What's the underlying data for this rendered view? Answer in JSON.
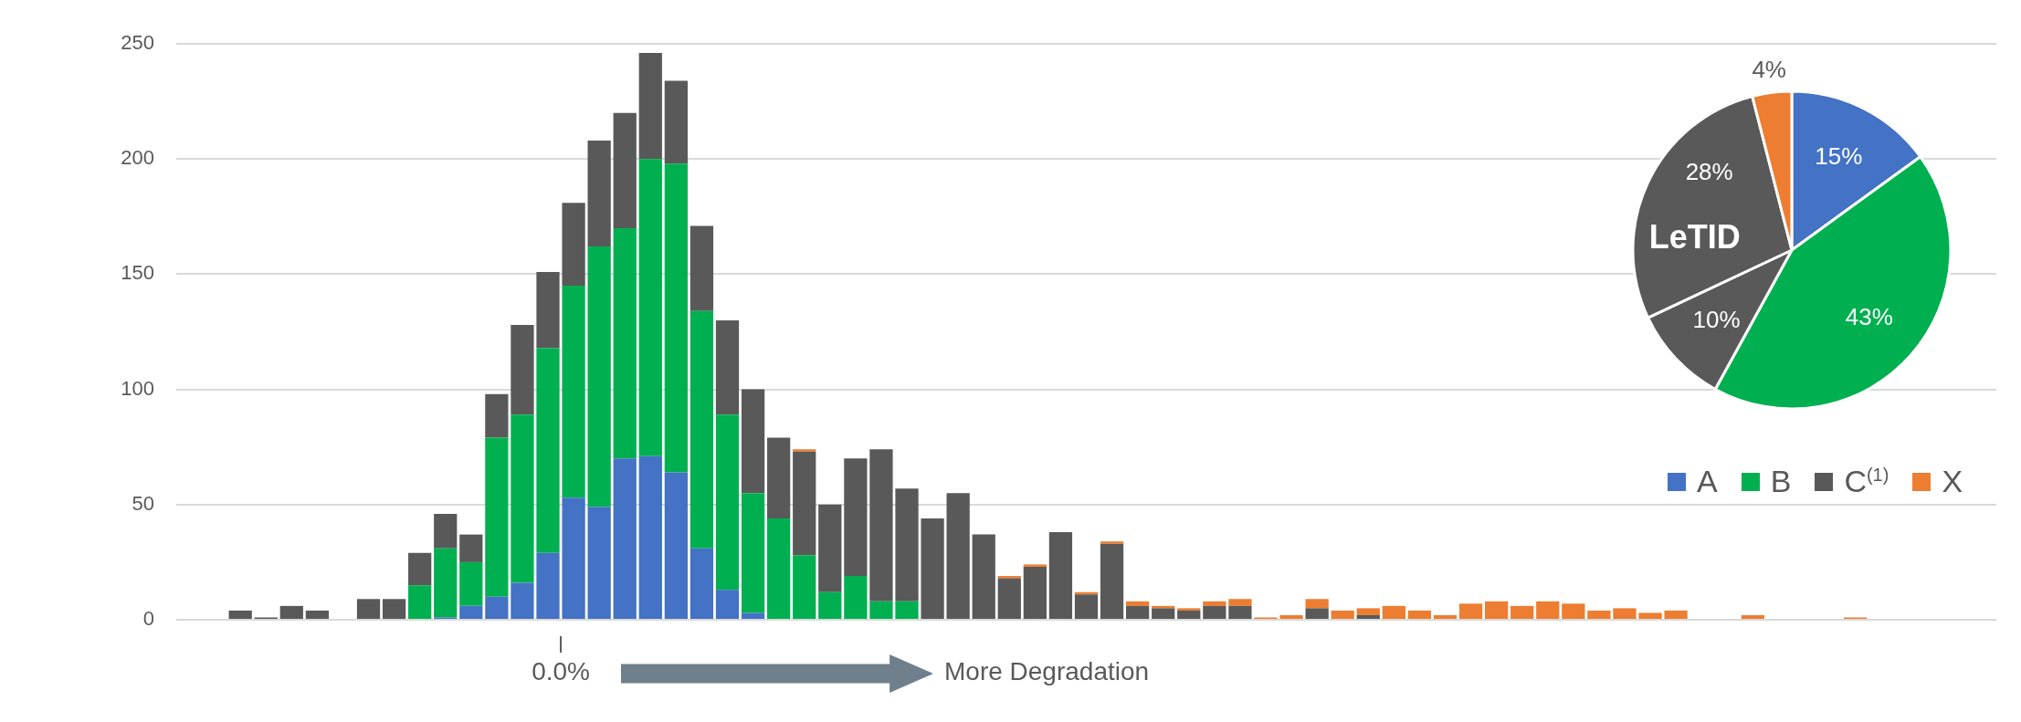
{
  "chart_data": [
    {
      "type": "bar",
      "stacked": true,
      "categories": [
        null,
        null,
        null,
        null,
        null,
        null,
        null,
        null,
        null,
        null,
        null,
        null,
        null,
        null,
        null,
        null,
        null,
        null,
        null,
        null,
        null,
        null,
        null,
        null,
        null,
        null,
        null,
        null,
        null,
        null,
        null,
        null,
        null,
        null,
        null,
        null,
        null,
        null,
        null,
        null,
        null,
        null,
        null,
        null,
        null,
        null,
        null,
        null,
        null,
        null,
        null,
        null,
        null,
        null,
        null,
        null,
        null,
        null,
        null,
        null,
        null,
        null,
        null,
        null,
        null,
        null,
        null,
        null,
        null,
        null,
        null
      ],
      "series": [
        {
          "name": "A",
          "color": "#4472c4",
          "values": [
            0,
            0,
            0,
            0,
            0,
            0,
            0,
            0,
            0,
            0,
            1,
            6,
            10,
            16,
            29,
            53,
            49,
            70,
            71,
            64,
            31,
            13,
            3,
            0,
            0,
            0,
            0,
            0,
            0,
            0,
            0,
            0,
            0,
            0,
            0,
            0,
            0,
            0,
            0,
            0,
            0,
            0,
            0,
            0,
            0,
            0,
            0,
            0,
            0,
            0,
            0,
            0,
            0,
            0,
            0,
            0,
            0,
            0,
            0,
            0,
            0,
            0,
            0,
            0,
            0,
            0,
            0,
            0,
            0,
            0,
            0
          ]
        },
        {
          "name": "B",
          "color": "#00b050",
          "values": [
            0,
            0,
            0,
            0,
            0,
            0,
            0,
            0,
            0,
            15,
            30,
            19,
            69,
            73,
            89,
            92,
            113,
            100,
            129,
            134,
            103,
            76,
            52,
            44,
            28,
            12,
            19,
            8,
            8,
            0,
            0,
            0,
            0,
            0,
            0,
            0,
            0,
            0,
            0,
            0,
            0,
            0,
            0,
            0,
            0,
            0,
            0,
            0,
            0,
            0,
            0,
            0,
            0,
            0,
            0,
            0,
            0,
            0,
            0,
            0,
            0,
            0,
            0,
            0,
            0,
            0,
            0,
            0,
            0,
            0,
            0
          ]
        },
        {
          "name": "C$^{(1)}$",
          "color": "#595959",
          "values": [
            0,
            0,
            4,
            1,
            6,
            4,
            0,
            9,
            9,
            14,
            15,
            12,
            19,
            39,
            33,
            36,
            46,
            50,
            46,
            36,
            37,
            41,
            45,
            35,
            45,
            38,
            51,
            66,
            49,
            44,
            55,
            37,
            18,
            23,
            38,
            11,
            33,
            6,
            5,
            4,
            6,
            6,
            0,
            0,
            5,
            0,
            2,
            0,
            0,
            0,
            0,
            0,
            0,
            0,
            0,
            0,
            0,
            0,
            0,
            0,
            0,
            0,
            0,
            0,
            0,
            0,
            0,
            0,
            0,
            0,
            0
          ]
        },
        {
          "name": "X",
          "color": "#ed7d31",
          "values": [
            0,
            0,
            0,
            0,
            0,
            0,
            0,
            0,
            0,
            0,
            0,
            0,
            0,
            0,
            0,
            0,
            0,
            0,
            0,
            0,
            0,
            0,
            0,
            0,
            1,
            0,
            0,
            0,
            0,
            0,
            0,
            0,
            1,
            1,
            0,
            1,
            1,
            2,
            1,
            1,
            2,
            3,
            1,
            2,
            4,
            4,
            3,
            6,
            4,
            2,
            7,
            8,
            6,
            8,
            7,
            4,
            5,
            3,
            4,
            0,
            0,
            2,
            0,
            0,
            0,
            1,
            0,
            0,
            0,
            0,
            0
          ]
        }
      ],
      "ylim": [
        0,
        250
      ],
      "yticks": [
        0,
        50,
        100,
        150,
        200,
        250
      ],
      "grid": "y",
      "legend": "right",
      "tick_labels": "y",
      "annotations": [
        "0.0%",
        "More Degradation"
      ]
    },
    {
      "type": "pie",
      "categories": [
        null,
        null,
        null,
        "LeTID",
        null
      ],
      "values": [
        15,
        43,
        10,
        28,
        4
      ],
      "colors": [
        "#4472c4",
        "#00b050",
        "#595959",
        "#595959",
        "#ed7d31"
      ],
      "value_labels": [
        "15%",
        "43%",
        "10%",
        "28%",
        "4%"
      ]
    }
  ]
}
